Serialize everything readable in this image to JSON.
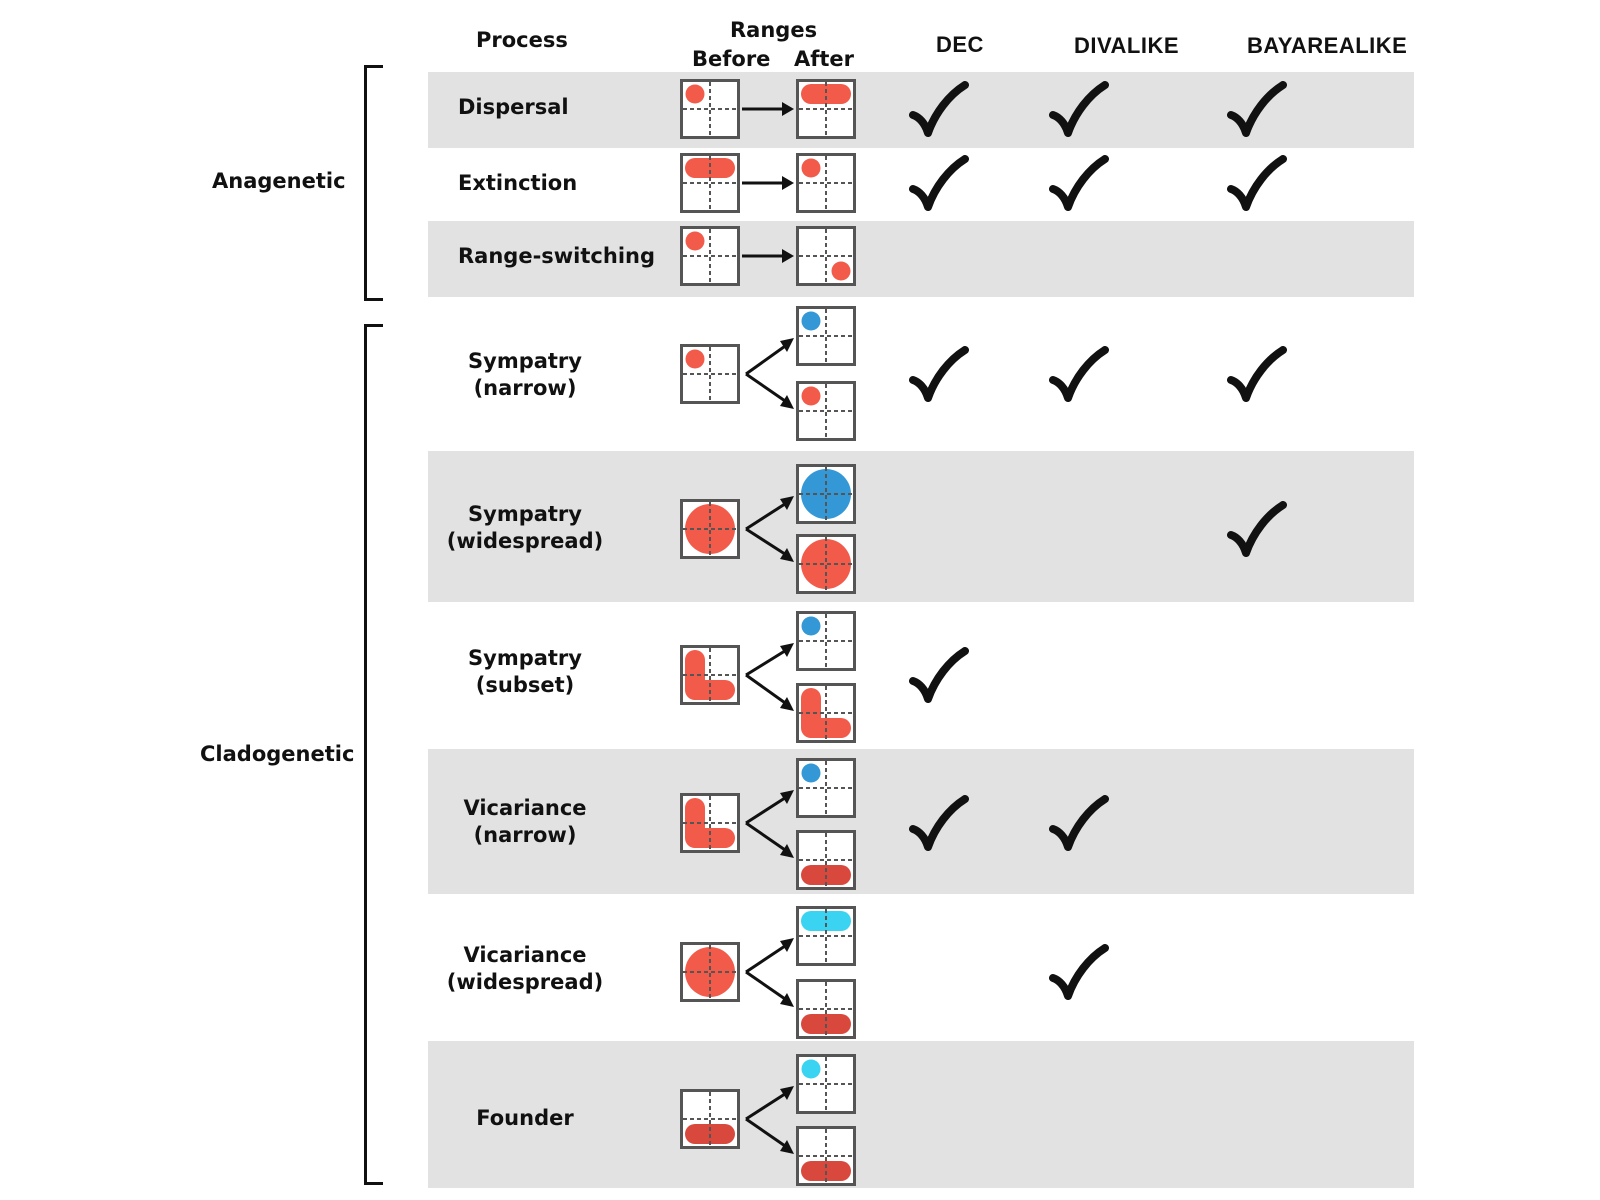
{
  "headers": {
    "process": "Process",
    "ranges": "Ranges",
    "before": "Before",
    "after": "After",
    "models": [
      "DEC",
      "DIVALIKE",
      "BAYAREALIKE"
    ]
  },
  "groups": [
    {
      "label": "Anagenetic"
    },
    {
      "label": "Cladogenetic"
    }
  ],
  "rows": [
    {
      "line1": "Dispersal",
      "line2": "",
      "shaded": true,
      "kind": "anagenetic",
      "before": "red-dot-tl",
      "after": [
        "red-bar-top"
      ],
      "checks": [
        true,
        true,
        true
      ]
    },
    {
      "line1": "Extinction",
      "line2": "",
      "shaded": false,
      "kind": "anagenetic",
      "before": "red-bar-top",
      "after": [
        "red-dot-tl"
      ],
      "checks": [
        true,
        true,
        true
      ]
    },
    {
      "line1": "Range-switching",
      "line2": "",
      "shaded": true,
      "kind": "anagenetic",
      "before": "red-dot-tl",
      "after": [
        "red-dot-br"
      ],
      "checks": [
        false,
        false,
        false
      ]
    },
    {
      "line1": "Sympatry",
      "line2": "(narrow)",
      "shaded": false,
      "kind": "cladogenetic",
      "before": "red-dot-tl",
      "after": [
        "blue-dot-tl",
        "red-dot-tl"
      ],
      "checks": [
        true,
        true,
        true
      ]
    },
    {
      "line1": "Sympatry",
      "line2": "(widespread)",
      "shaded": true,
      "kind": "cladogenetic",
      "before": "red-big-circle",
      "after": [
        "blue-big-circle",
        "red-big-circle"
      ],
      "checks": [
        false,
        false,
        true
      ]
    },
    {
      "line1": "Sympatry",
      "line2": "(subset)",
      "shaded": false,
      "kind": "cladogenetic",
      "before": "red-l-shape",
      "after": [
        "blue-dot-tl",
        "red-l-shape"
      ],
      "checks": [
        true,
        false,
        false
      ]
    },
    {
      "line1": "Vicariance",
      "line2": "(narrow)",
      "shaded": true,
      "kind": "cladogenetic",
      "before": "red-l-shape",
      "after": [
        "blue-dot-tl",
        "darkred-bar-bottom"
      ],
      "checks": [
        true,
        true,
        false
      ]
    },
    {
      "line1": "Vicariance",
      "line2": "(widespread)",
      "shaded": false,
      "kind": "cladogenetic",
      "before": "red-big-circle",
      "after": [
        "cyan-bar-top",
        "darkred-bar-bottom"
      ],
      "checks": [
        false,
        true,
        false
      ]
    },
    {
      "line1": "Founder",
      "line2": "",
      "shaded": true,
      "kind": "cladogenetic",
      "before": "darkred-bar-bottom",
      "after": [
        "cyan-dot-tl",
        "darkred-bar-bottom"
      ],
      "checks": [
        false,
        false,
        false
      ]
    }
  ],
  "colors": {
    "red": "#f25a4a",
    "darkred": "#d9483d",
    "blue": "#3598d6",
    "cyan": "#3ad4f2",
    "band": "#e2e2e2",
    "check": "#111111"
  },
  "icons": {
    "check": "checkmark-icon",
    "arrow": "arrow-right-icon",
    "fork": "fork-arrows-icon"
  }
}
